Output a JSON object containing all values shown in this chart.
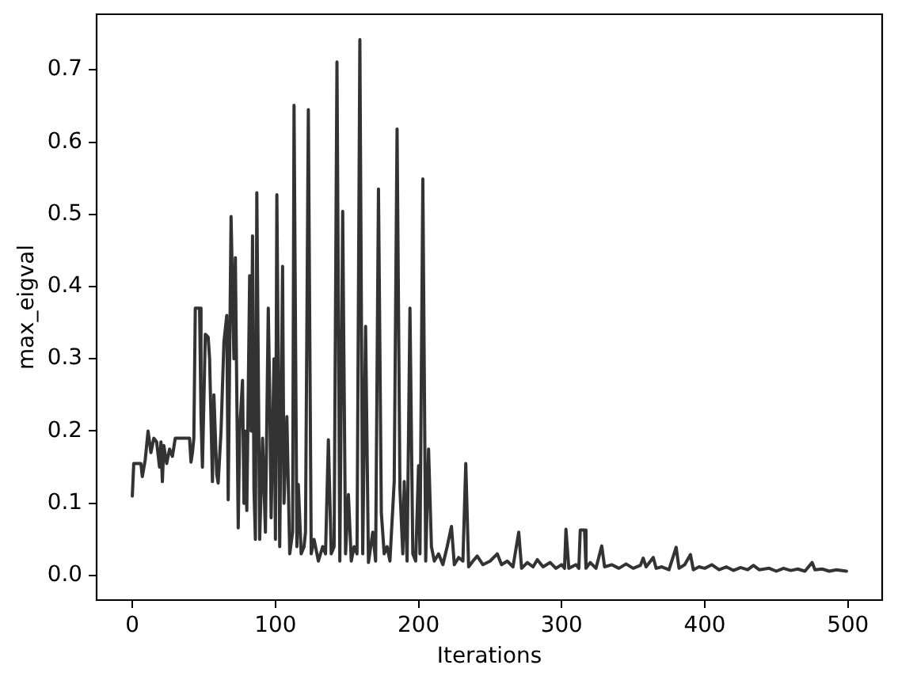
{
  "chart_data": {
    "type": "line",
    "xlabel": "Iterations",
    "ylabel": "max_eigval",
    "color": "#333333",
    "x": [
      0,
      1,
      6,
      7,
      9,
      11,
      13,
      15,
      17,
      19,
      20,
      21,
      22,
      24,
      26,
      28,
      30,
      38,
      40,
      41,
      42,
      43,
      44,
      47,
      48,
      49,
      51,
      53,
      54,
      56,
      57,
      59,
      60,
      62,
      64,
      66,
      67,
      69,
      71,
      72,
      74,
      75,
      77,
      78,
      79,
      80,
      82,
      83,
      84,
      85,
      86,
      87,
      89,
      91,
      93,
      95,
      96,
      97,
      99,
      100,
      101,
      103,
      105,
      106,
      108,
      110,
      112,
      113,
      115,
      116,
      118,
      120,
      121,
      123,
      125,
      127,
      130,
      133,
      135,
      137,
      139,
      141,
      143,
      145,
      147,
      149,
      151,
      153,
      155,
      157,
      159,
      161,
      163,
      165,
      168,
      170,
      172,
      174,
      176,
      178,
      180,
      183,
      185,
      187,
      189,
      190,
      192,
      194,
      196,
      198,
      200,
      201,
      203,
      205,
      207,
      209,
      211,
      214,
      217,
      220,
      223,
      225,
      228,
      231,
      233,
      235,
      238,
      241,
      245,
      250,
      255,
      258,
      262,
      266,
      270,
      272,
      276,
      280,
      283,
      287,
      292,
      296,
      300,
      302,
      303,
      305,
      310,
      312,
      313,
      316,
      317,
      320,
      324,
      328,
      330,
      335,
      340,
      345,
      350,
      355,
      357,
      359,
      364,
      366,
      370,
      375,
      380,
      382,
      386,
      390,
      392,
      396,
      400,
      405,
      410,
      415,
      420,
      425,
      430,
      434,
      438,
      445,
      450,
      455,
      460,
      465,
      470,
      475,
      477,
      482,
      487,
      492,
      499
    ],
    "values": [
      0.11,
      0.155,
      0.155,
      0.137,
      0.16,
      0.2,
      0.17,
      0.19,
      0.185,
      0.15,
      0.185,
      0.13,
      0.18,
      0.155,
      0.175,
      0.165,
      0.19,
      0.19,
      0.19,
      0.157,
      0.17,
      0.19,
      0.37,
      0.37,
      0.22,
      0.15,
      0.334,
      0.33,
      0.3,
      0.13,
      0.25,
      0.14,
      0.128,
      0.2,
      0.323,
      0.36,
      0.105,
      0.497,
      0.3,
      0.44,
      0.066,
      0.2,
      0.27,
      0.1,
      0.2,
      0.09,
      0.415,
      0.2,
      0.47,
      0.12,
      0.05,
      0.53,
      0.05,
      0.19,
      0.06,
      0.37,
      0.25,
      0.08,
      0.3,
      0.05,
      0.527,
      0.04,
      0.428,
      0.1,
      0.22,
      0.03,
      0.06,
      0.651,
      0.04,
      0.126,
      0.03,
      0.04,
      0.06,
      0.645,
      0.03,
      0.05,
      0.02,
      0.04,
      0.03,
      0.188,
      0.03,
      0.04,
      0.711,
      0.02,
      0.504,
      0.03,
      0.112,
      0.02,
      0.04,
      0.03,
      0.742,
      0.03,
      0.345,
      0.018,
      0.06,
      0.02,
      0.535,
      0.087,
      0.03,
      0.04,
      0.02,
      0.13,
      0.618,
      0.12,
      0.03,
      0.13,
      0.02,
      0.37,
      0.03,
      0.02,
      0.152,
      0.03,
      0.549,
      0.02,
      0.175,
      0.04,
      0.02,
      0.03,
      0.015,
      0.04,
      0.068,
      0.015,
      0.025,
      0.02,
      0.155,
      0.012,
      0.02,
      0.027,
      0.015,
      0.02,
      0.03,
      0.015,
      0.02,
      0.012,
      0.06,
      0.01,
      0.018,
      0.012,
      0.022,
      0.012,
      0.018,
      0.01,
      0.015,
      0.01,
      0.064,
      0.01,
      0.015,
      0.01,
      0.063,
      0.063,
      0.01,
      0.018,
      0.01,
      0.041,
      0.012,
      0.015,
      0.01,
      0.016,
      0.01,
      0.014,
      0.024,
      0.012,
      0.025,
      0.01,
      0.012,
      0.008,
      0.039,
      0.01,
      0.015,
      0.029,
      0.008,
      0.012,
      0.01,
      0.015,
      0.008,
      0.012,
      0.007,
      0.011,
      0.008,
      0.014,
      0.008,
      0.01,
      0.006,
      0.01,
      0.007,
      0.009,
      0.006,
      0.018,
      0.008,
      0.009,
      0.006,
      0.008,
      0.006
    ],
    "xlim": [
      -24.95,
      523.95
    ],
    "ylim": [
      -0.034,
      0.777
    ],
    "xticks": [
      0,
      100,
      200,
      300,
      400,
      500
    ],
    "yticks": [
      {
        "value": 0,
        "label": "0.0"
      },
      0.1,
      0.2,
      0.3,
      0.4,
      0.5,
      0.6,
      0.7
    ]
  }
}
